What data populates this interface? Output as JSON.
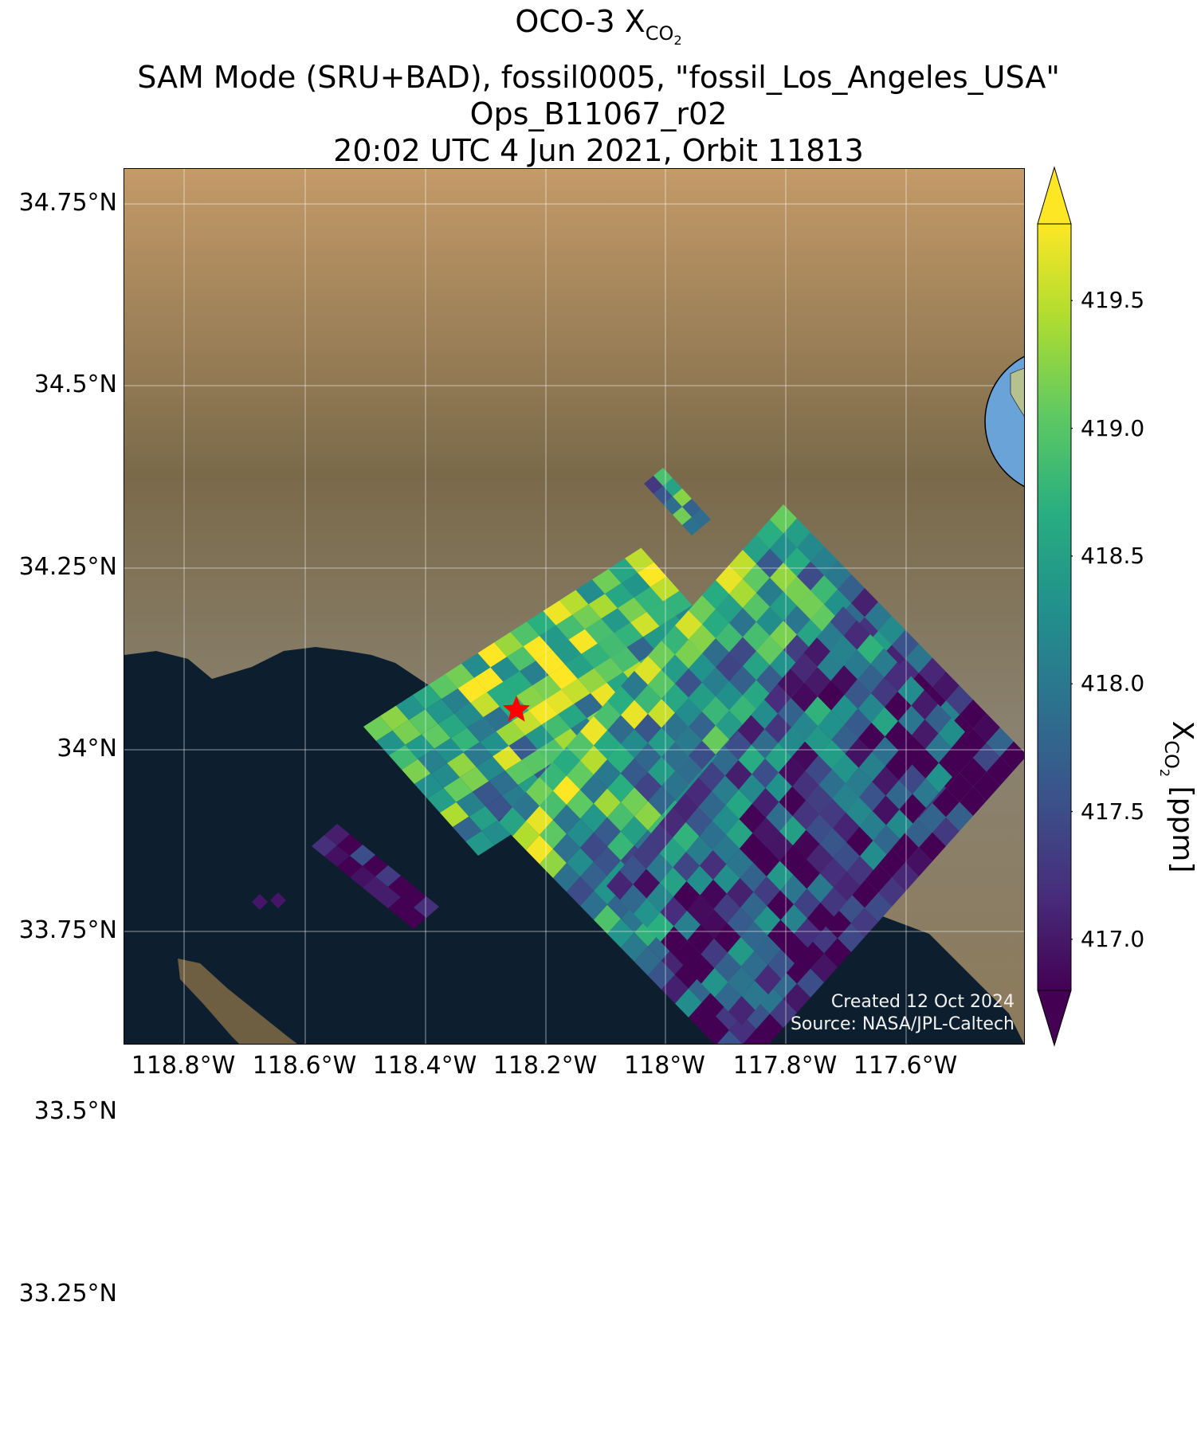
{
  "title": {
    "line1_prefix": "OCO-3 X",
    "line1_sub": "CO",
    "line1_sub2": "2",
    "line2": "SAM Mode (SRU+BAD), fossil0005, \"fossil_Los_Angeles_USA\"",
    "line3": "Ops_B11067_r02",
    "line4": "20:02 UTC 4 Jun 2021, Orbit 11813"
  },
  "map": {
    "lat_ticks": [
      "34.75°N",
      "34.5°N",
      "34.25°N",
      "34°N",
      "33.75°N",
      "33.5°N",
      "33.25°N"
    ],
    "lon_ticks": [
      "118.8°W",
      "118.6°W",
      "118.4°W",
      "118.2°W",
      "118°W",
      "117.8°W",
      "117.6°W"
    ],
    "target_marker": "star-icon",
    "target_color": "#ff0000",
    "ocean_color": "#0d1f2e",
    "land_color": "#8c7a5a"
  },
  "watermark": {
    "created": "Created 12 Oct 2024",
    "source": "Source: NASA/JPL-Caltech"
  },
  "colorbar": {
    "label_prefix": "X",
    "label_sub": "CO",
    "label_sub2": "2",
    "label_suffix": " [ppm]",
    "ticks": [
      "419.5",
      "419.0",
      "418.5",
      "418.0",
      "417.5",
      "417.0"
    ],
    "colormap": "viridis",
    "range": [
      416.8,
      419.8
    ],
    "extend": "both"
  },
  "inset": {
    "type": "globe",
    "marker": "star-icon",
    "marker_color": "#ff0000"
  }
}
